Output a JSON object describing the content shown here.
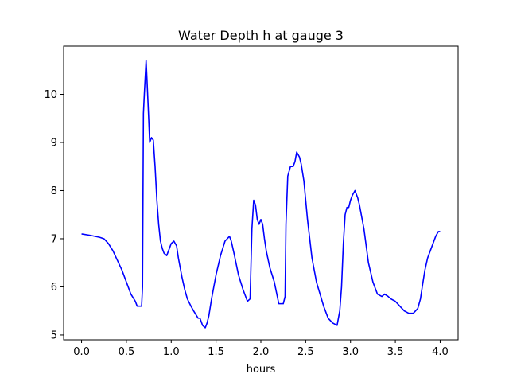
{
  "chart_data": {
    "type": "line",
    "title": "Water Depth h at gauge 3",
    "xlabel": "hours",
    "ylabel": "",
    "xlim": [
      -0.2,
      4.2
    ],
    "ylim": [
      4.9,
      11.0
    ],
    "xticks": [
      0.0,
      0.5,
      1.0,
      1.5,
      2.0,
      2.5,
      3.0,
      3.5,
      4.0
    ],
    "xtick_labels": [
      "0.0",
      "0.5",
      "1.0",
      "1.5",
      "2.0",
      "2.5",
      "3.0",
      "3.5",
      "4.0"
    ],
    "yticks": [
      5,
      6,
      7,
      8,
      9,
      10
    ],
    "ytick_labels": [
      "5",
      "6",
      "7",
      "8",
      "9",
      "10"
    ],
    "grid": false,
    "series": [
      {
        "color": "#0000ff",
        "x": [
          0.0,
          0.1,
          0.2,
          0.25,
          0.3,
          0.35,
          0.4,
          0.45,
          0.5,
          0.55,
          0.6,
          0.62,
          0.64,
          0.65,
          0.67,
          0.68,
          0.69,
          0.7,
          0.72,
          0.73,
          0.75,
          0.76,
          0.78,
          0.8,
          0.82,
          0.84,
          0.86,
          0.88,
          0.9,
          0.92,
          0.95,
          0.98,
          1.0,
          1.03,
          1.06,
          1.08,
          1.1,
          1.12,
          1.15,
          1.18,
          1.22,
          1.25,
          1.3,
          1.32,
          1.35,
          1.38,
          1.4,
          1.42,
          1.45,
          1.5,
          1.55,
          1.6,
          1.65,
          1.67,
          1.7,
          1.75,
          1.8,
          1.85,
          1.88,
          1.9,
          1.92,
          1.94,
          1.96,
          1.98,
          2.0,
          2.02,
          2.04,
          2.06,
          2.1,
          2.15,
          2.2,
          2.25,
          2.27,
          2.28,
          2.3,
          2.33,
          2.36,
          2.38,
          2.4,
          2.43,
          2.45,
          2.48,
          2.52,
          2.57,
          2.62,
          2.7,
          2.75,
          2.8,
          2.85,
          2.88,
          2.9,
          2.92,
          2.94,
          2.96,
          2.98,
          3.0,
          3.02,
          3.05,
          3.08,
          3.1,
          3.15,
          3.2,
          3.25,
          3.3,
          3.35,
          3.38,
          3.42,
          3.45,
          3.5,
          3.55,
          3.6,
          3.65,
          3.7,
          3.75,
          3.78,
          3.8,
          3.83,
          3.86,
          3.9,
          3.95,
          3.98,
          4.0
        ],
        "y": [
          7.1,
          7.07,
          7.03,
          7.0,
          6.9,
          6.75,
          6.55,
          6.35,
          6.1,
          5.85,
          5.7,
          5.6,
          5.6,
          5.6,
          5.6,
          6.0,
          9.6,
          10.0,
          10.7,
          10.3,
          9.45,
          9.0,
          9.1,
          9.05,
          8.5,
          7.8,
          7.3,
          6.95,
          6.8,
          6.7,
          6.65,
          6.8,
          6.9,
          6.95,
          6.85,
          6.6,
          6.4,
          6.2,
          5.95,
          5.75,
          5.6,
          5.5,
          5.35,
          5.35,
          5.2,
          5.15,
          5.25,
          5.4,
          5.75,
          6.25,
          6.65,
          6.95,
          7.05,
          6.95,
          6.7,
          6.25,
          5.95,
          5.7,
          5.75,
          7.2,
          7.8,
          7.7,
          7.4,
          7.3,
          7.4,
          7.3,
          7.0,
          6.75,
          6.4,
          6.1,
          5.65,
          5.65,
          5.8,
          7.3,
          8.3,
          8.5,
          8.5,
          8.6,
          8.8,
          8.7,
          8.55,
          8.2,
          7.4,
          6.6,
          6.1,
          5.6,
          5.35,
          5.25,
          5.2,
          5.5,
          6.0,
          6.9,
          7.5,
          7.65,
          7.65,
          7.8,
          7.9,
          8.0,
          7.85,
          7.7,
          7.2,
          6.5,
          6.1,
          5.85,
          5.8,
          5.85,
          5.8,
          5.75,
          5.7,
          5.6,
          5.5,
          5.45,
          5.45,
          5.55,
          5.75,
          6.0,
          6.35,
          6.6,
          6.8,
          7.05,
          7.15,
          7.15
        ]
      }
    ]
  }
}
